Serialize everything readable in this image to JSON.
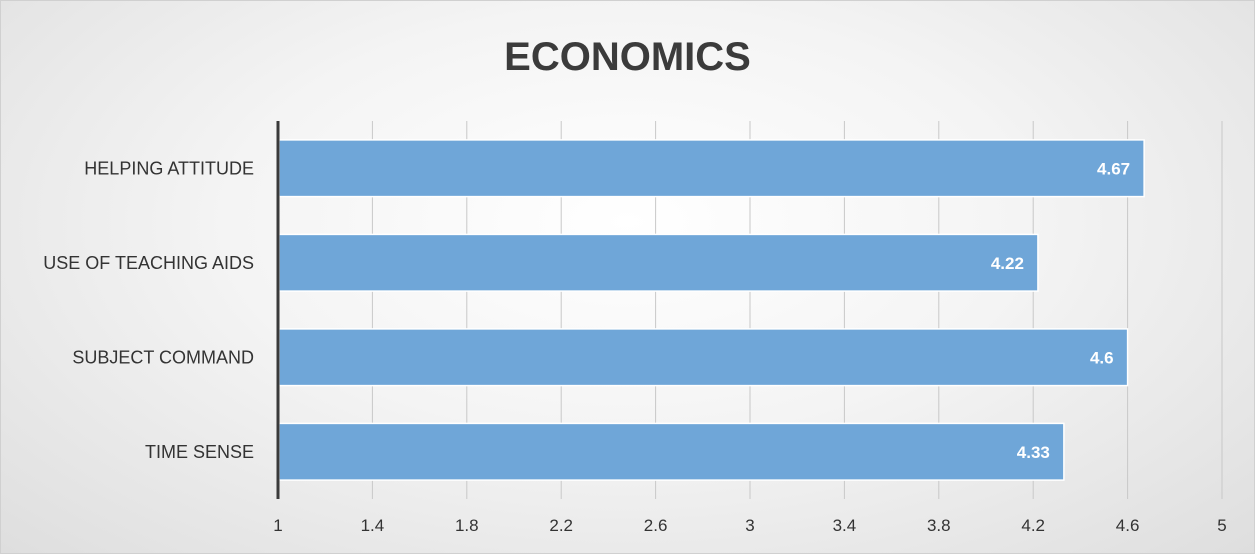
{
  "chart_data": {
    "type": "bar",
    "orientation": "horizontal",
    "title": "ECONOMICS",
    "categories": [
      "HELPING ATTITUDE",
      "USE OF TEACHING AIDS",
      "SUBJECT COMMAND",
      "TIME SENSE"
    ],
    "values": [
      4.67,
      4.22,
      4.6,
      4.33
    ],
    "data_labels": [
      "4.67",
      "4.22",
      "4.6",
      "4.33"
    ],
    "xlim": [
      1,
      5
    ],
    "x_ticks": [
      "1",
      "1.4",
      "1.8",
      "2.2",
      "2.6",
      "3",
      "3.4",
      "3.8",
      "4.2",
      "4.6",
      "5"
    ],
    "grid": "vertical",
    "legend": "none",
    "bar_color": "#6fa6d8",
    "bar_edge_color": "#ffffff"
  }
}
